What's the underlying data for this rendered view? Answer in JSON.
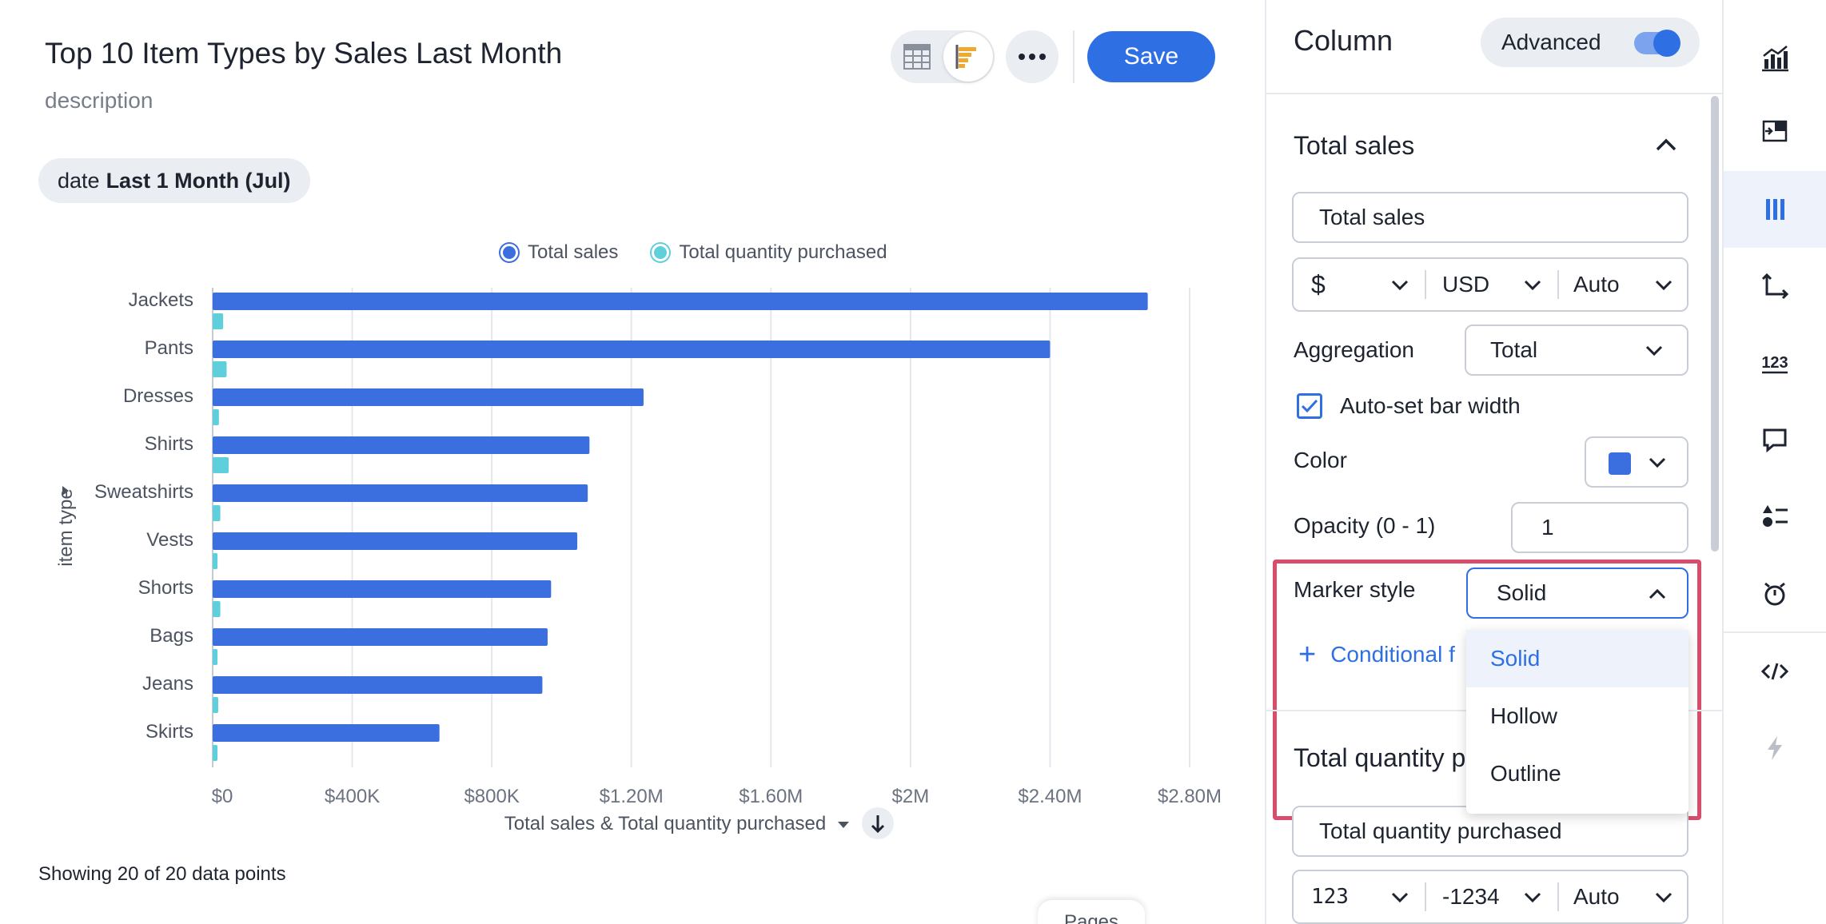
{
  "header": {
    "title": "Top 10 Item Types by Sales Last Month",
    "description": "description",
    "save_label": "Save"
  },
  "filter": {
    "key": "date",
    "value": "Last 1 Month (Jul)"
  },
  "legend": [
    {
      "label": "Total sales",
      "color": "#3b6fe0"
    },
    {
      "label": "Total quantity purchased",
      "color": "#5fcfdc"
    }
  ],
  "chart_data": {
    "type": "bar",
    "orientation": "horizontal",
    "categories": [
      "Jackets",
      "Pants",
      "Dresses",
      "Shirts",
      "Sweatshirts",
      "Vests",
      "Shorts",
      "Bags",
      "Jeans",
      "Skirts"
    ],
    "series": [
      {
        "name": "Total sales",
        "color": "#3b6fe0",
        "values": [
          2680000,
          2400000,
          1235000,
          1080000,
          1075000,
          1045000,
          970000,
          960000,
          945000,
          650000
        ]
      },
      {
        "name": "Total quantity purchased",
        "color": "#5fcfdc",
        "values": [
          30000,
          40000,
          18000,
          46000,
          22000,
          14000,
          22000,
          14000,
          16000,
          12000
        ]
      }
    ],
    "ylabel": "item type",
    "xlabel": "Total sales & Total quantity purchased",
    "xlim": [
      0,
      2800000
    ],
    "xticks": [
      "$0",
      "$400K",
      "$800K",
      "$1.20M",
      "$1.60M",
      "$2M",
      "$2.40M",
      "$2.80M"
    ],
    "grid": true,
    "legend_position": "top"
  },
  "footer": {
    "data_points": "Showing 20 of 20 data points",
    "pages_tab": "Pages"
  },
  "panel": {
    "title": "Column",
    "advanced_label": "Advanced",
    "advanced_on": true,
    "section1": {
      "title": "Total sales",
      "name_value": "Total sales",
      "currency_symbol": "$",
      "currency_code": "USD",
      "currency_units": "Auto",
      "aggregation_label": "Aggregation",
      "aggregation_value": "Total",
      "auto_bar_width_label": "Auto-set bar width",
      "color_label": "Color",
      "color_value": "#3b6fe0",
      "opacity_label": "Opacity (0 - 1)",
      "opacity_value": "1",
      "marker_label": "Marker style",
      "marker_value": "Solid",
      "marker_options": [
        "Solid",
        "Hollow",
        "Outline"
      ],
      "conditional_label": "Conditional f"
    },
    "section2": {
      "title": "Total quantity p",
      "name_value": "Total quantity purchased",
      "number_format": "123",
      "negative_format": "-1234",
      "units": "Auto"
    }
  },
  "rail": {
    "icons": [
      "chart-type-icon",
      "configure-icon",
      "column-settings-icon",
      "axis-icon",
      "data-labels-icon",
      "tooltip-icon",
      "legend-icon",
      "sort-icon",
      "embed-code-icon",
      "quick-actions-icon"
    ]
  },
  "colors": {
    "accent": "#2f6fe4",
    "highlight": "#d84d6b"
  }
}
